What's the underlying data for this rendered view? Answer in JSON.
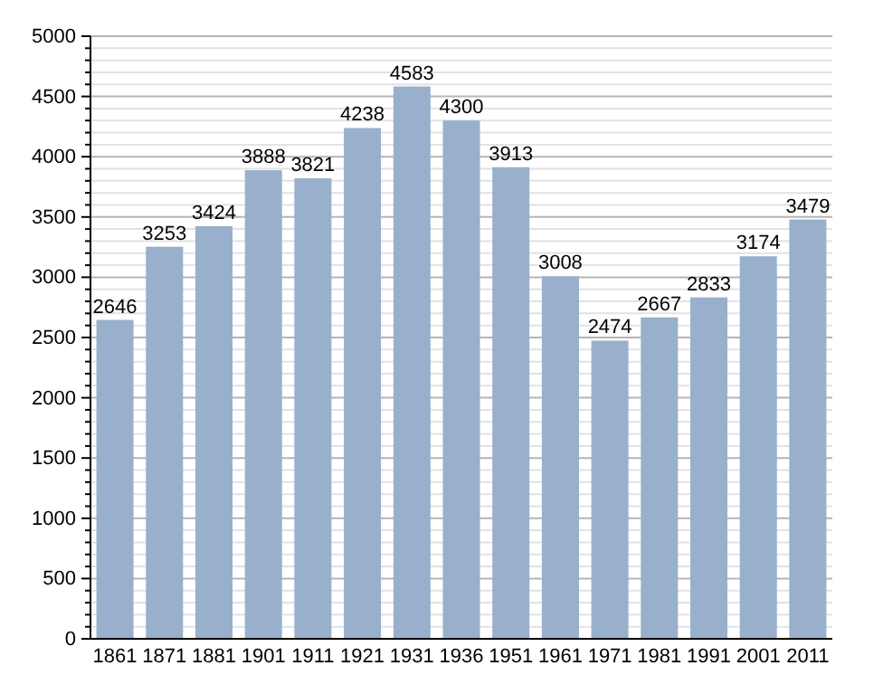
{
  "chart_data": {
    "type": "bar",
    "categories": [
      "1861",
      "1871",
      "1881",
      "1901",
      "1911",
      "1921",
      "1931",
      "1936",
      "1951",
      "1961",
      "1971",
      "1981",
      "1991",
      "2001",
      "2011"
    ],
    "values": [
      2646,
      3253,
      3424,
      3888,
      3821,
      4238,
      4583,
      4300,
      3913,
      3008,
      2474,
      2667,
      2833,
      3174,
      3479
    ],
    "color": "#98b0cb",
    "data_labels": true,
    "grid": "y",
    "ylim": [
      0,
      5000
    ],
    "yticks": [
      0,
      {
        "value": 100,
        "label": null
      },
      {
        "value": 200,
        "label": null
      },
      {
        "value": 300,
        "label": null
      },
      {
        "value": 400,
        "label": null
      },
      500,
      {
        "value": 600,
        "label": null
      },
      {
        "value": 700,
        "label": null
      },
      {
        "value": 800,
        "label": null
      },
      {
        "value": 900,
        "label": null
      },
      1000,
      {
        "value": 1100,
        "label": null
      },
      {
        "value": 1200,
        "label": null
      },
      {
        "value": 1300,
        "label": null
      },
      {
        "value": 1400,
        "label": null
      },
      1500,
      {
        "value": 1600,
        "label": null
      },
      {
        "value": 1700,
        "label": null
      },
      {
        "value": 1800,
        "label": null
      },
      {
        "value": 1900,
        "label": null
      },
      2000,
      {
        "value": 2100,
        "label": null
      },
      {
        "value": 2200,
        "label": null
      },
      {
        "value": 2300,
        "label": null
      },
      {
        "value": 2400,
        "label": null
      },
      2500,
      {
        "value": 2600,
        "label": null
      },
      {
        "value": 2700,
        "label": null
      },
      {
        "value": 2800,
        "label": null
      },
      {
        "value": 2900,
        "label": null
      },
      3000,
      {
        "value": 3100,
        "label": null
      },
      {
        "value": 3200,
        "label": null
      },
      {
        "value": 3300,
        "label": null
      },
      {
        "value": 3400,
        "label": null
      },
      3500,
      {
        "value": 3600,
        "label": null
      },
      {
        "value": 3700,
        "label": null
      },
      {
        "value": 3800,
        "label": null
      },
      {
        "value": 3900,
        "label": null
      },
      4000,
      {
        "value": 4100,
        "label": null
      },
      {
        "value": 4200,
        "label": null
      },
      {
        "value": 4300,
        "label": null
      },
      {
        "value": 4400,
        "label": null
      },
      4500,
      {
        "value": 4600,
        "label": null
      },
      {
        "value": 4700,
        "label": null
      },
      {
        "value": 4800,
        "label": null
      },
      {
        "value": 4900,
        "label": null
      },
      5000
    ]
  }
}
